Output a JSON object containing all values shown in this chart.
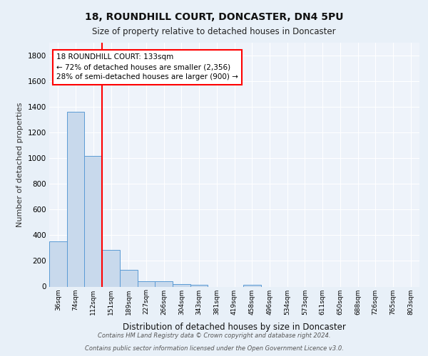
{
  "title1": "18, ROUNDHILL COURT, DONCASTER, DN4 5PU",
  "title2": "Size of property relative to detached houses in Doncaster",
  "xlabel": "Distribution of detached houses by size in Doncaster",
  "ylabel": "Number of detached properties",
  "footnote1": "Contains HM Land Registry data © Crown copyright and database right 2024.",
  "footnote2": "Contains public sector information licensed under the Open Government Licence v3.0.",
  "bar_labels": [
    "36sqm",
    "74sqm",
    "112sqm",
    "151sqm",
    "189sqm",
    "227sqm",
    "266sqm",
    "304sqm",
    "343sqm",
    "381sqm",
    "419sqm",
    "458sqm",
    "496sqm",
    "534sqm",
    "573sqm",
    "611sqm",
    "650sqm",
    "688sqm",
    "726sqm",
    "765sqm",
    "803sqm"
  ],
  "bar_values": [
    350,
    1360,
    1020,
    285,
    130,
    42,
    42,
    22,
    15,
    0,
    0,
    12,
    0,
    0,
    0,
    0,
    0,
    0,
    0,
    0,
    0
  ],
  "bar_color": "#c8d9ec",
  "bar_edge_color": "#5b9bd5",
  "red_line_x": 2.5,
  "annotation_text": "18 ROUNDHILL COURT: 133sqm\n← 72% of detached houses are smaller (2,356)\n28% of semi-detached houses are larger (900) →",
  "ylim": [
    0,
    1900
  ],
  "yticks": [
    0,
    200,
    400,
    600,
    800,
    1000,
    1200,
    1400,
    1600,
    1800
  ],
  "bg_color": "#e8f0f8",
  "plot_bg_color": "#eef3fa",
  "grid_color": "#ffffff"
}
